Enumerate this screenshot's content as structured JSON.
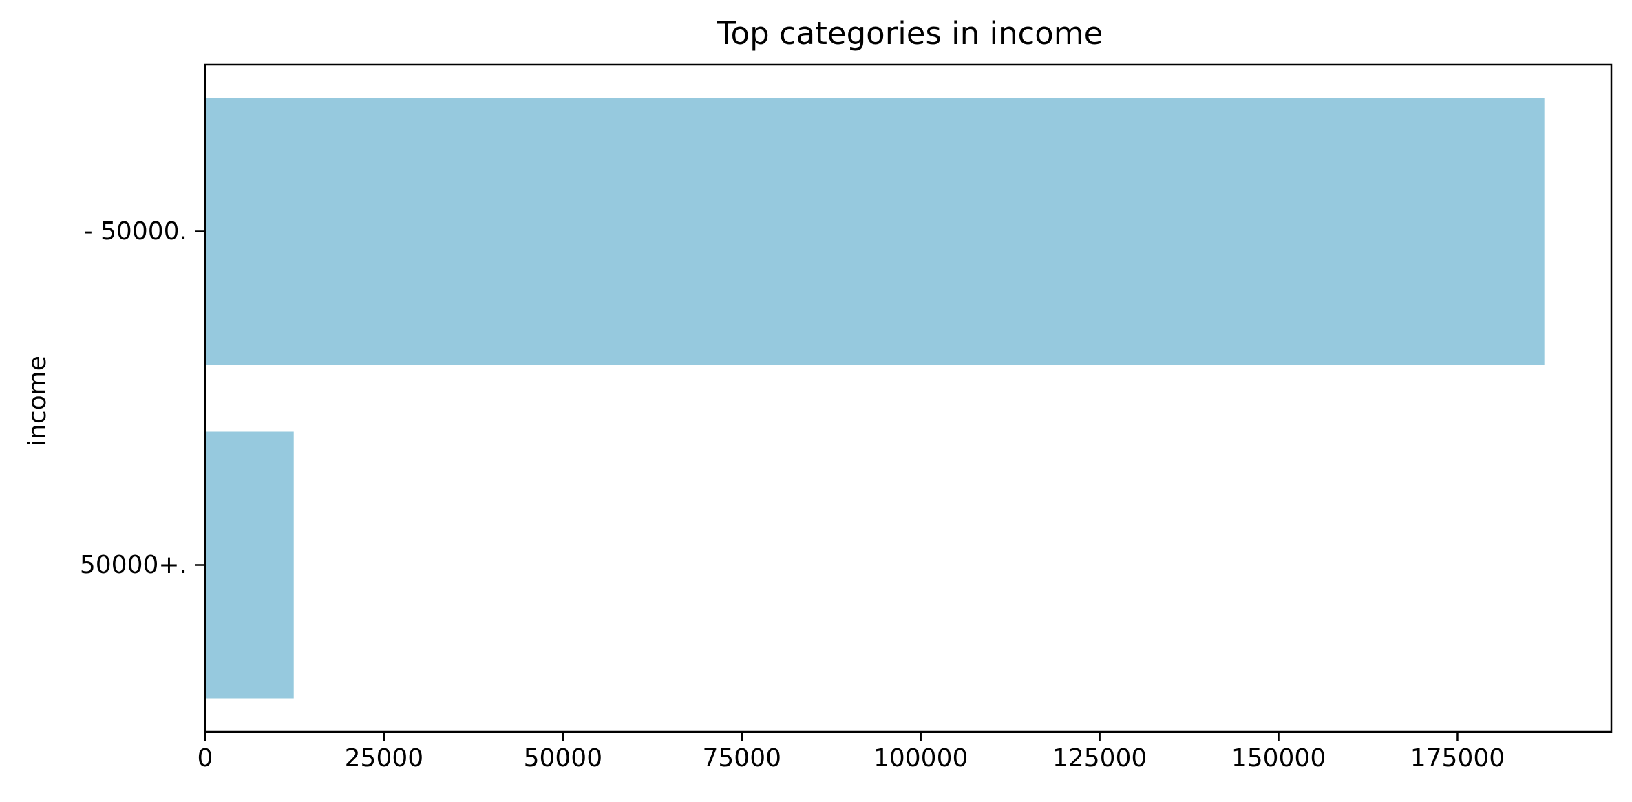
{
  "chart_data": {
    "type": "bar",
    "orientation": "horizontal",
    "title": "Top categories in income",
    "xlabel": "",
    "ylabel": "income",
    "categories": [
      " - 50000.",
      " 50000+."
    ],
    "values": [
      187141,
      12382
    ],
    "xlim": [
      0,
      196500
    ],
    "xticks": [
      0,
      25000,
      50000,
      75000,
      100000,
      125000,
      150000,
      175000
    ],
    "xtick_labels": [
      "0",
      "25000",
      "50000",
      "75000",
      "100000",
      "125000",
      "150000",
      "175000"
    ],
    "grid": false,
    "legend": "none",
    "bar_color": "#96c9de"
  }
}
